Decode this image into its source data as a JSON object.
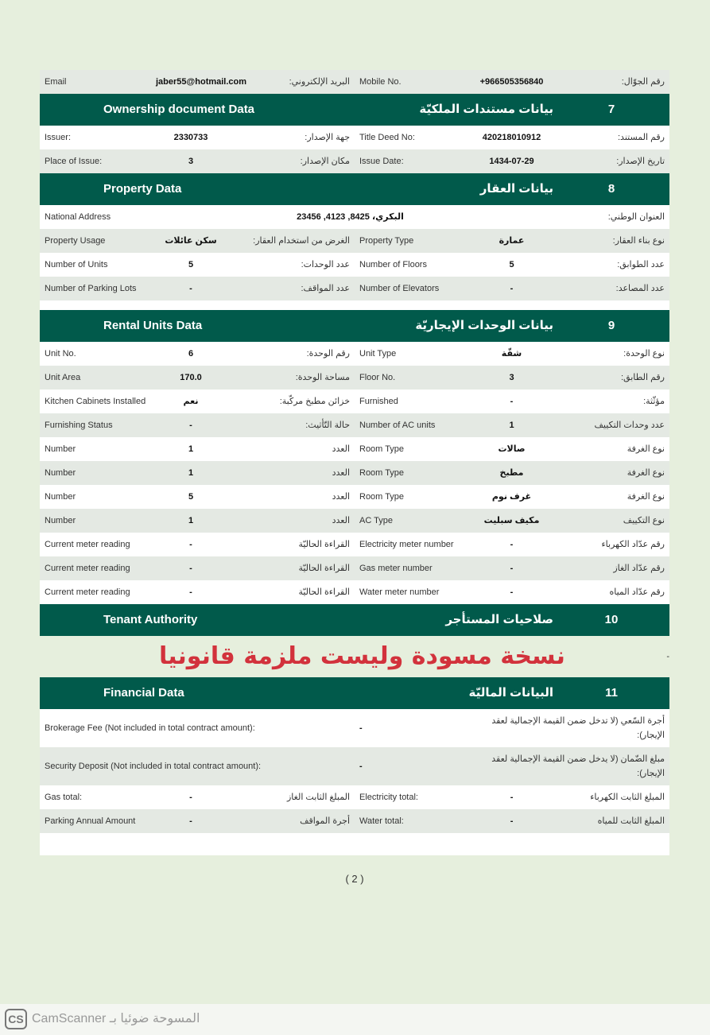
{
  "top_row": {
    "c1": "Email",
    "c2": "jaber55@hotmail.com",
    "c3": "البريد الإلكتروني:",
    "c4": "Mobile No.",
    "c5": "+966505356840",
    "c6": "رقم الجوّال:"
  },
  "sections": [
    {
      "number": "7",
      "title_en": "Ownership document Data",
      "title_ar": "بيانات مستندات الملكيّة",
      "rows": [
        {
          "c1": "Issuer:",
          "c2": "2330733",
          "c3": "جهة الإصدار:",
          "c4": "Title Deed No:",
          "c5": "420218010912",
          "c6": "رقم المستند:"
        },
        {
          "c1": "Place of Issue:",
          "c2": "3",
          "c3": "مكان الإصدار:",
          "c4": "Issue Date:",
          "c5": "1434-07-29",
          "c6": "تاريخ الإصدار:"
        }
      ]
    },
    {
      "number": "8",
      "title_en": "Property Data",
      "title_ar": "بيانات العقار",
      "rows": [
        {
          "wide": true,
          "c1": "National Address",
          "c2": "البكري، 8425, 4123, 23456",
          "c3": "العنوان الوطني:"
        },
        {
          "c1": "Property Usage",
          "c2": "سكن عائلات",
          "c3": "الغرض من استخدام العقار:",
          "c4": "Property Type",
          "c5": "عمارة",
          "c6": "نوع بناء العقار:"
        },
        {
          "c1": "Number of Units",
          "c2": "5",
          "c3": "عدد الوحدات:",
          "c4": "Number of Floors",
          "c5": "5",
          "c6": "عدد الطوابق:"
        },
        {
          "c1": "Number of Parking Lots",
          "c2": "-",
          "c3": "عدد المواقف:",
          "c4": "Number of Elevators",
          "c5": "-",
          "c6": "عدد المصاعد:"
        }
      ]
    },
    {
      "number": "9",
      "title_en": "Rental Units Data",
      "title_ar": "بيانات الوحدات الإيجاريّة",
      "rows": [
        {
          "c1": "Unit No.",
          "c2": "6",
          "c3": "رقم الوحدة:",
          "c4": "Unit Type",
          "c5": "شقّة",
          "c6": "نوع الوحدة:"
        },
        {
          "c1": "Unit Area",
          "c2": "170.0",
          "c3": "مساحة الوحدة:",
          "c4": "Floor No.",
          "c5": "3",
          "c6": "رقم الطابق:"
        },
        {
          "c1": "Kitchen Cabinets Installed",
          "c2": "نعم",
          "c3": "خزائن مطبخ مركّبة:",
          "c4": "Furnished",
          "c5": "-",
          "c6": "مؤثّثة:"
        },
        {
          "c1": "Furnishing Status",
          "c2": "-",
          "c3": "حالة التّأثيث:",
          "c4": "Number of AC units",
          "c5": "1",
          "c6": "عدد وحدات التكييف"
        },
        {
          "c1": "Number",
          "c2": "1",
          "c3": "العدد",
          "c4": "Room Type",
          "c5": "صالات",
          "c6": "نوع الغرفة"
        },
        {
          "c1": "Number",
          "c2": "1",
          "c3": "العدد",
          "c4": "Room Type",
          "c5": "مطبخ",
          "c6": "نوع الغرفة"
        },
        {
          "c1": "Number",
          "c2": "5",
          "c3": "العدد",
          "c4": "Room Type",
          "c5": "غرف نوم",
          "c6": "نوع الغرفة"
        },
        {
          "c1": "Number",
          "c2": "1",
          "c3": "العدد",
          "c4": "AC Type",
          "c5": "مكيف سبليت",
          "c6": "نوع التكييف"
        },
        {
          "c1": "Current meter reading",
          "c2": "-",
          "c3": "القراءة الحاليّة",
          "c4": "Electricity meter number",
          "c5": "-",
          "c6": "رقم عدّاد الكهرباء"
        },
        {
          "c1": "Current meter reading",
          "c2": "-",
          "c3": "القراءة الحاليّة",
          "c4": "Gas meter number",
          "c5": "-",
          "c6": "رقم عدّاد الغاز"
        },
        {
          "c1": "Current meter reading",
          "c2": "-",
          "c3": "القراءة الحاليّة",
          "c4": "Water meter number",
          "c5": "-",
          "c6": "رقم عدّاد المياه"
        }
      ]
    },
    {
      "number": "10",
      "title_en": "Tenant Authority",
      "title_ar": "صلاحيات المستأجر",
      "rows": [],
      "after": "-"
    },
    {
      "number": "11",
      "title_en": "Financial Data",
      "title_ar": "البيانات الماليّة",
      "rows": [
        {
          "fin": true,
          "c1": "Brokerage Fee (Not included in total contract amount):",
          "c2": "-",
          "c3": "أجرة السّعي (لا تدخل ضمن القيمة الإجمالية لعقد الإيجار):"
        },
        {
          "fin": true,
          "c1": "Security Deposit (Not included in total contract amount):",
          "c2": "-",
          "c3": "مبلغ الضّمان (لا يدخل ضمن القيمة الإجمالية لعقد الإيجار):"
        },
        {
          "c1": "Gas total:",
          "c2": "-",
          "c3": "المبلغ الثابت الغاز",
          "c4": "Electricity total:",
          "c5": "-",
          "c6": "المبلغ الثابت الكهرباء"
        },
        {
          "c1": "Parking Annual Amount",
          "c2": "-",
          "c3": "أجرة المواقف",
          "c4": "Water total:",
          "c5": "-",
          "c6": "المبلغ الثابت للمياه"
        }
      ]
    }
  ],
  "watermark": "نسخة مسودة وليست ملزمة قانونيا",
  "page_number": "( 2 )",
  "footer": {
    "logo": "CS",
    "text": "CamScanner المسوحة ضوئيا بـ"
  },
  "colors": {
    "header": "#015a4b",
    "row_alt": "#e4e9e3",
    "page": "#e6efdd",
    "watermark": "#d2323c"
  }
}
